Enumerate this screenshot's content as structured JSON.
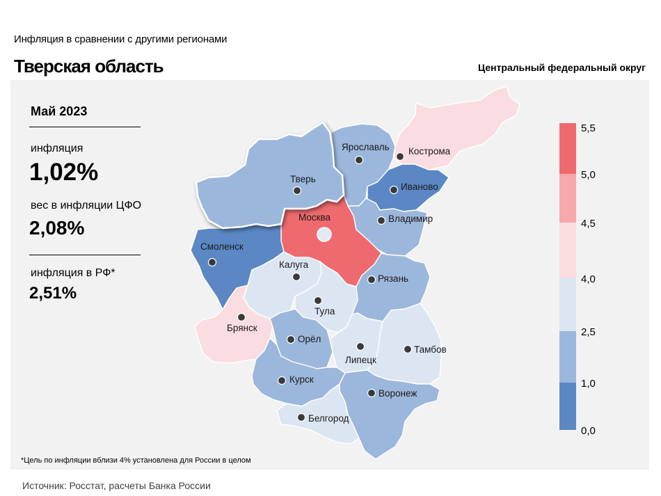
{
  "header": {
    "subtitle": "Инфляция  в сравнении  с другими  регионами",
    "title": "Тверская область",
    "district": "Центральный федеральный округ"
  },
  "stats": {
    "period": "Май 2023",
    "inflation_label": "инфляция",
    "inflation_value": "1,02%",
    "weight_label": "вес в инфляции  ЦФО",
    "weight_value": "2,08%",
    "rf_label": "инфляция  в РФ*",
    "rf_value": "2,51%"
  },
  "footnote": "*Цель по инфляции вблизи 4% установлена для России в целом",
  "source": "Источник: Росстат, расчеты Банка России",
  "legend": {
    "ticks": [
      "5,5",
      "5,0",
      "4,5",
      "4,0",
      "2,5",
      "1,0",
      "0,0"
    ],
    "bins": [
      {
        "from": 5.0,
        "to": 5.5,
        "color": "#ef6a6e"
      },
      {
        "from": 4.5,
        "to": 5.0,
        "color": "#f6a8ab"
      },
      {
        "from": 4.0,
        "to": 4.5,
        "color": "#fadde0"
      },
      {
        "from": 2.5,
        "to": 4.0,
        "color": "#dce6f3"
      },
      {
        "from": 1.0,
        "to": 2.5,
        "color": "#9cb7dc"
      },
      {
        "from": 0.0,
        "to": 1.0,
        "color": "#5b88c4"
      }
    ]
  },
  "regions": [
    {
      "name": "Тверь",
      "color": "#9cb7dc",
      "highlighted": true
    },
    {
      "name": "Ярославль",
      "color": "#9cb7dc"
    },
    {
      "name": "Кострома",
      "color": "#fadde0"
    },
    {
      "name": "Иваново",
      "color": "#5b88c4"
    },
    {
      "name": "Владимир",
      "color": "#9cb7dc"
    },
    {
      "name": "Москва",
      "color": "#ef6a6e"
    },
    {
      "name": "Смоленск",
      "color": "#5b88c4"
    },
    {
      "name": "Калуга",
      "color": "#dce6f3"
    },
    {
      "name": "Тула",
      "color": "#dce6f3"
    },
    {
      "name": "Рязань",
      "color": "#9cb7dc"
    },
    {
      "name": "Брянск",
      "color": "#fadde0"
    },
    {
      "name": "Орёл",
      "color": "#9cb7dc"
    },
    {
      "name": "Липецк",
      "color": "#dce6f3"
    },
    {
      "name": "Тамбов",
      "color": "#dce6f3"
    },
    {
      "name": "Курск",
      "color": "#9cb7dc"
    },
    {
      "name": "Воронеж",
      "color": "#9cb7dc"
    },
    {
      "name": "Белгород",
      "color": "#dce6f3"
    }
  ]
}
